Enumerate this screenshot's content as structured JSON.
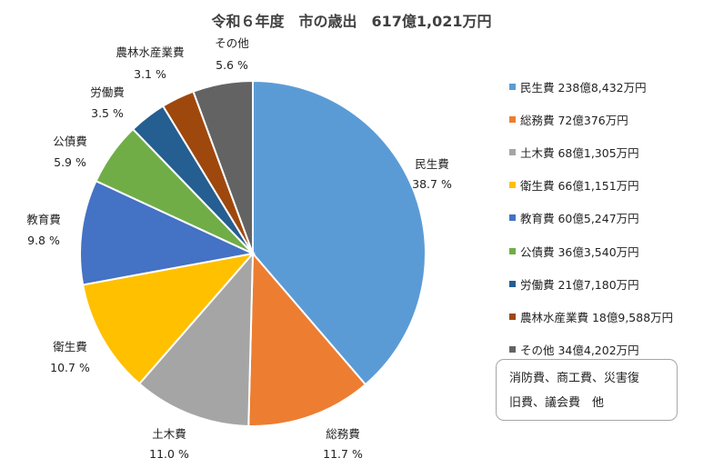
{
  "chart_data": {
    "type": "pie",
    "title": "令和６年度　市の歳出　617億1,021万円",
    "start_angle_deg": 0,
    "direction": "clockwise",
    "slices": [
      {
        "name": "民生費",
        "percent": 38.7,
        "percent_label": "38.7 %",
        "amount": "238億8,432万円",
        "legend_label": "民生費 238億8,432万円",
        "color": "#5b9bd5"
      },
      {
        "name": "総務費",
        "percent": 11.7,
        "percent_label": "11.7 %",
        "amount": "72億376万円",
        "legend_label": "総務費 72億376万円",
        "color": "#ed7d31"
      },
      {
        "name": "土木費",
        "percent": 11.0,
        "percent_label": "11.0 %",
        "amount": "68億1,305万円",
        "legend_label": "土木費 68億1,305万円",
        "color": "#a5a5a5"
      },
      {
        "name": "衛生費",
        "percent": 10.7,
        "percent_label": "10.7 %",
        "amount": "66億1,151万円",
        "legend_label": "衛生費 66億1,151万円",
        "color": "#ffc000"
      },
      {
        "name": "教育費",
        "percent": 9.8,
        "percent_label": "9.8 %",
        "amount": "60億5,247万円",
        "legend_label": "教育費 60億5,247万円",
        "color": "#4472c4"
      },
      {
        "name": "公債費",
        "percent": 5.9,
        "percent_label": "5.9 %",
        "amount": "36億3,540万円",
        "legend_label": "公債費 36億3,540万円",
        "color": "#70ad47"
      },
      {
        "name": "労働費",
        "percent": 3.5,
        "percent_label": "3.5 %",
        "amount": "21億7,180万円",
        "legend_label": "労働費 21億7,180万円",
        "color": "#255e91"
      },
      {
        "name": "農林水産業費",
        "percent": 3.1,
        "percent_label": "3.1 %",
        "amount": "18億9,588万円",
        "legend_label": "農林水産業費 18億9,588万円",
        "color": "#9e480e"
      },
      {
        "name": "その他",
        "percent": 5.6,
        "percent_label": "5.6 %",
        "amount": "34億4,202万円",
        "legend_label": "その他 34億4,202万円",
        "color": "#636363"
      }
    ],
    "legend_position": "right",
    "note": [
      "消防費、商工費、災害復",
      "旧費、議会費　他"
    ]
  }
}
